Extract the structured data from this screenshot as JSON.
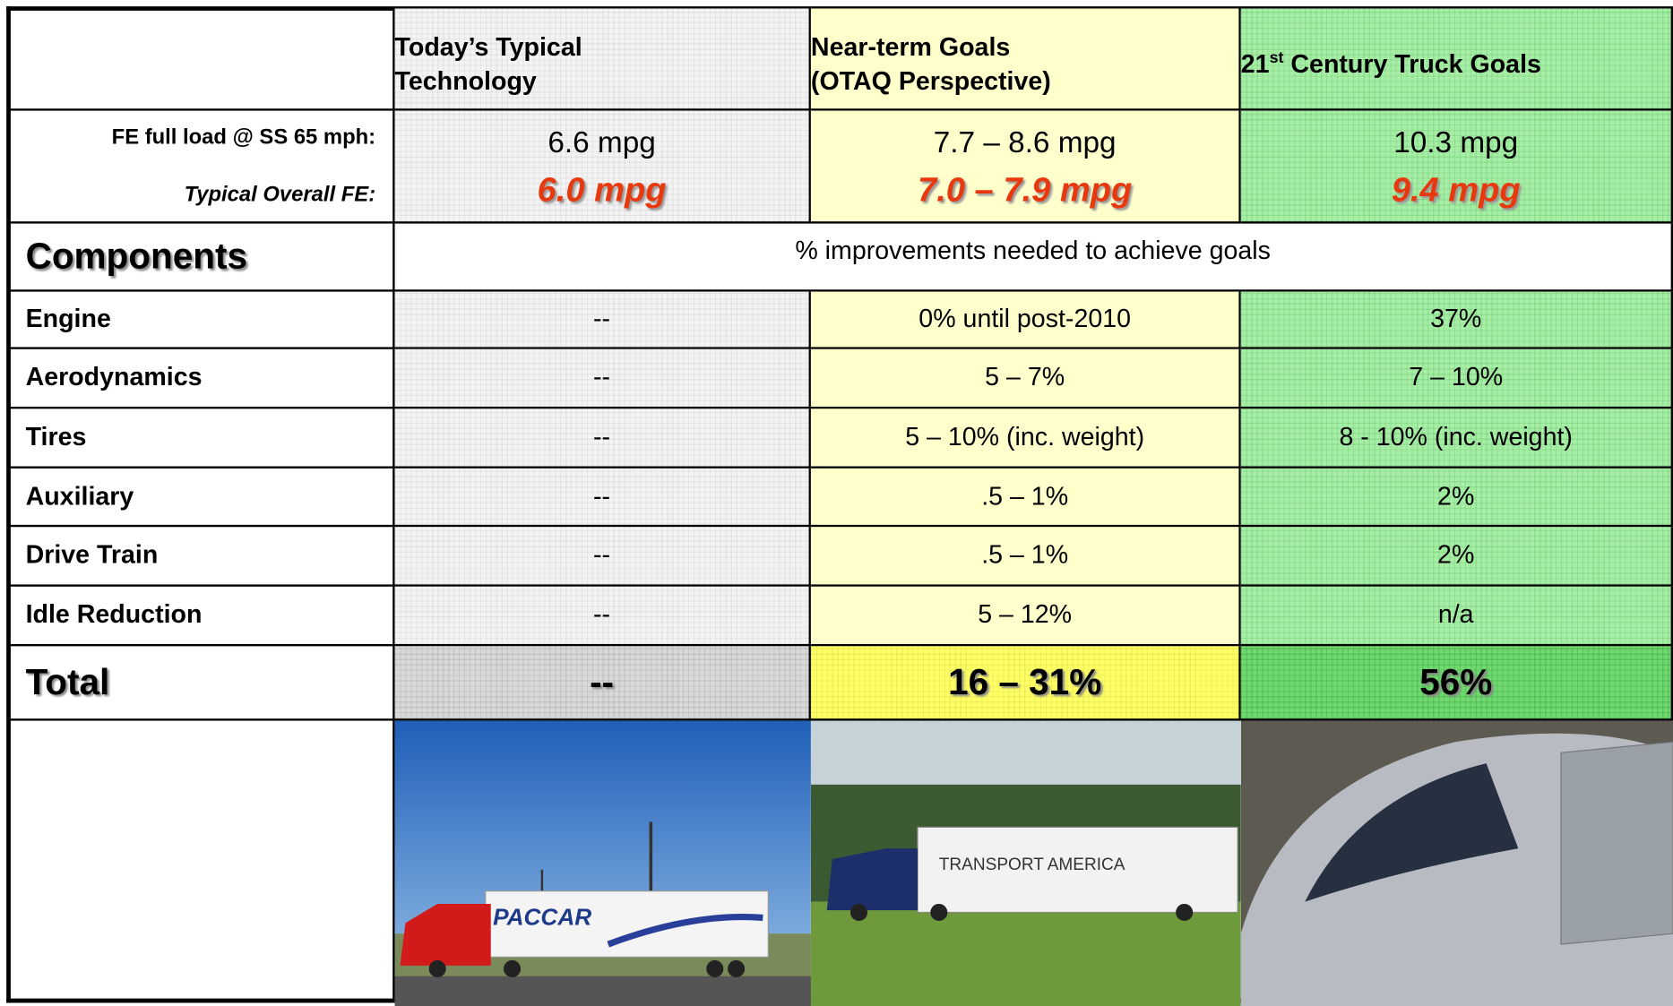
{
  "header": {
    "columns": [
      {
        "lines": [
          "Today’s Typical",
          "Technology"
        ]
      },
      {
        "lines": [
          "Near-term Goals",
          "(OTAQ Perspective)"
        ]
      },
      {
        "lines": [
          "21",
          "st",
          " Century Truck Goals"
        ]
      }
    ]
  },
  "fe": {
    "full_load": {
      "label": "FE full load @ SS 65 mph:",
      "values": [
        "6.6 mpg",
        "7.7 – 8.6 mpg",
        "10.3 mpg"
      ]
    },
    "overall": {
      "label": "Typical Overall FE:",
      "values": [
        "6.0 mpg",
        "7.0 – 7.9 mpg",
        "9.4 mpg"
      ]
    }
  },
  "components": {
    "heading": "Components",
    "note": "% improvements needed to achieve goals"
  },
  "table": {
    "rows": [
      [
        "Engine",
        "--",
        "0% until post-2010",
        "37%"
      ],
      [
        "Aerodynamics",
        "--",
        "5 – 7%",
        "7 – 10%"
      ],
      [
        "Tires",
        "--",
        "5 – 10% (inc. weight)",
        "8 - 10% (inc. weight)"
      ],
      [
        "Auxiliary",
        "--",
        ".5 – 1%",
        "2%"
      ],
      [
        "Drive Train",
        "--",
        ".5 – 1%",
        "2%"
      ],
      [
        "Idle Reduction",
        "--",
        "5 – 12%",
        "n/a"
      ]
    ]
  },
  "total": [
    "Total",
    "--",
    "16 – 31%",
    "56%"
  ]
}
